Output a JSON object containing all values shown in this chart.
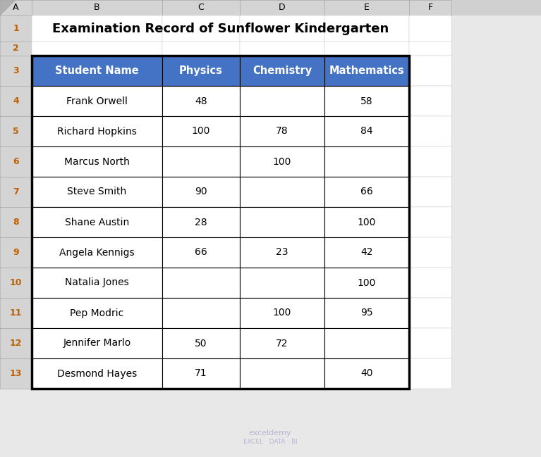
{
  "title": "Examination Record of Sunflower Kindergarten",
  "col_labels": [
    "Student Name",
    "Physics",
    "Chemistry",
    "Mathematics"
  ],
  "rows": [
    [
      "Frank Orwell",
      "48",
      "",
      "58"
    ],
    [
      "Richard Hopkins",
      "100",
      "78",
      "84"
    ],
    [
      "Marcus North",
      "",
      "100",
      ""
    ],
    [
      "Steve Smith",
      "90",
      "",
      "66"
    ],
    [
      "Shane Austin",
      "28",
      "",
      "100"
    ],
    [
      "Angela Kennigs",
      "66",
      "23",
      "42"
    ],
    [
      "Natalia Jones",
      "",
      "",
      "100"
    ],
    [
      "Pep Modric",
      "",
      "100",
      "95"
    ],
    [
      "Jennifer Marlo",
      "50",
      "72",
      ""
    ],
    [
      "Desmond Hayes",
      "71",
      "",
      "40"
    ]
  ],
  "header_bg": "#4472C4",
  "header_text_color": "#FFFFFF",
  "row_bg": "#FFFFFF",
  "row_text_color": "#000000",
  "spreadsheet_bg": "#E8E8E8",
  "col_header_labels": [
    "A",
    "B",
    "C",
    "D",
    "E",
    "F"
  ],
  "row_header_labels": [
    "1",
    "2",
    "3",
    "4",
    "5",
    "6",
    "7",
    "8",
    "9",
    "10",
    "11",
    "12",
    "13"
  ],
  "row_number_color": "#C06000",
  "col_letter_color": "#000000",
  "title_fontsize": 13,
  "header_fontsize": 10.5,
  "cell_fontsize": 10,
  "row_num_fontsize": 9,
  "col_letter_fontsize": 9,
  "watermark_text": "exceldemy",
  "watermark_sub": "EXCEL · DATA · BI"
}
